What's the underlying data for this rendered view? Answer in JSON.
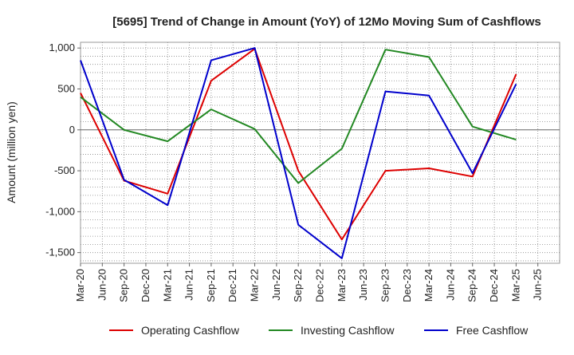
{
  "chart_data": {
    "type": "line",
    "title": "[5695]  Trend of Change in Amount (YoY) of 12Mo Moving Sum of Cashflows",
    "xlabel": "",
    "ylabel": "Amount (million yen)",
    "ylim": [
      -1630,
      1070
    ],
    "yticks": [
      1000,
      500,
      0,
      -500,
      -1000,
      -1500
    ],
    "ytick_labels": [
      "1,000",
      "500",
      "0",
      "-500",
      "-1,000",
      "-1,500"
    ],
    "categories": [
      "Mar-20",
      "Jun-20",
      "Sep-20",
      "Dec-20",
      "Mar-21",
      "Jun-21",
      "Sep-21",
      "Dec-21",
      "Mar-22",
      "Jun-22",
      "Sep-22",
      "Dec-22",
      "Mar-23",
      "Jun-23",
      "Sep-23",
      "Dec-23",
      "Mar-24",
      "Jun-24",
      "Sep-24",
      "Dec-24",
      "Mar-25",
      "Jun-25"
    ],
    "series": [
      {
        "name": "Operating Cashflow",
        "color": "#dd0000",
        "values": [
          450,
          null,
          -620,
          null,
          -780,
          null,
          600,
          null,
          990,
          null,
          -500,
          null,
          -1340,
          null,
          -500,
          null,
          -470,
          null,
          -570,
          null,
          680,
          null
        ]
      },
      {
        "name": "Investing Cashflow",
        "color": "#228822",
        "values": [
          400,
          null,
          0,
          null,
          -140,
          null,
          250,
          null,
          10,
          null,
          -650,
          null,
          -230,
          null,
          980,
          null,
          890,
          null,
          40,
          null,
          -120,
          null
        ]
      },
      {
        "name": "Free Cashflow",
        "color": "#0000cc",
        "values": [
          850,
          null,
          -610,
          null,
          -920,
          null,
          850,
          null,
          1000,
          null,
          -1160,
          null,
          -1570,
          null,
          470,
          null,
          420,
          null,
          -530,
          null,
          560,
          null
        ]
      }
    ]
  }
}
